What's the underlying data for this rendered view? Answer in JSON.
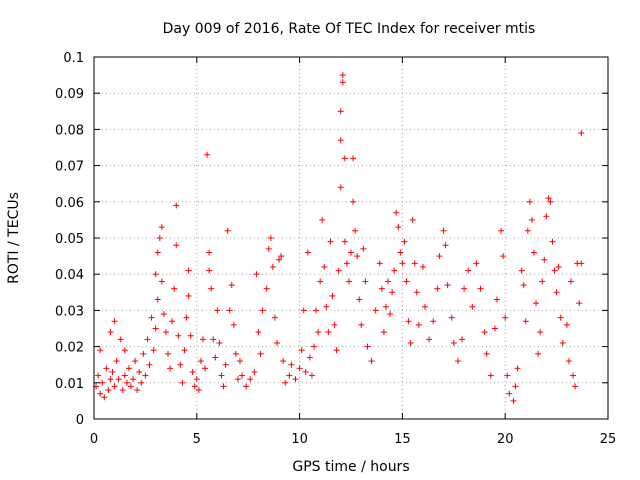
{
  "chart_data": {
    "type": "scatter",
    "title": "Day 009 of 2016, Rate Of TEC Index for receiver mtis",
    "xlabel": "GPS time / hours",
    "ylabel": "ROTI / TECUs",
    "xlim": [
      0,
      25
    ],
    "ylim": [
      0,
      0.1
    ],
    "xticks": [
      0,
      5,
      10,
      15,
      20,
      25
    ],
    "xtick_labels": [
      "0",
      "5",
      "10",
      "15",
      "20",
      "25"
    ],
    "yticks": [
      0,
      0.01,
      0.02,
      0.03,
      0.04,
      0.05,
      0.06,
      0.07,
      0.08,
      0.09,
      0.1
    ],
    "ytick_labels": [
      "0",
      "0.01",
      "0.02",
      "0.03",
      "0.04",
      "0.05",
      "0.06",
      "0.07",
      "0.08",
      "0.09",
      "0.1"
    ],
    "grid": true,
    "marker": "+",
    "color": "#ff0000",
    "series": [
      {
        "name": "ROTI",
        "points": [
          [
            0.1,
            0.009
          ],
          [
            0.2,
            0.012
          ],
          [
            0.3,
            0.007
          ],
          [
            0.3,
            0.019
          ],
          [
            0.4,
            0.01
          ],
          [
            0.5,
            0.006
          ],
          [
            0.6,
            0.014
          ],
          [
            0.7,
            0.008
          ],
          [
            0.8,
            0.011
          ],
          [
            0.8,
            0.024
          ],
          [
            0.9,
            0.013
          ],
          [
            1.0,
            0.009
          ],
          [
            1.0,
            0.027
          ],
          [
            1.1,
            0.016
          ],
          [
            1.2,
            0.011
          ],
          [
            1.3,
            0.022
          ],
          [
            1.4,
            0.008
          ],
          [
            1.5,
            0.012
          ],
          [
            1.5,
            0.019
          ],
          [
            1.6,
            0.01
          ],
          [
            1.7,
            0.014
          ],
          [
            1.8,
            0.009
          ],
          [
            1.9,
            0.011
          ],
          [
            2.0,
            0.016
          ],
          [
            2.1,
            0.008
          ],
          [
            2.2,
            0.013
          ],
          [
            2.3,
            0.01
          ],
          [
            2.4,
            0.018
          ],
          [
            2.5,
            0.012
          ],
          [
            2.6,
            0.022
          ],
          [
            2.7,
            0.015
          ],
          [
            2.8,
            0.028
          ],
          [
            2.9,
            0.019
          ],
          [
            3.0,
            0.025
          ],
          [
            3.0,
            0.04
          ],
          [
            3.1,
            0.033
          ],
          [
            3.1,
            0.046
          ],
          [
            3.2,
            0.05
          ],
          [
            3.3,
            0.053
          ],
          [
            3.3,
            0.038
          ],
          [
            3.4,
            0.029
          ],
          [
            3.5,
            0.024
          ],
          [
            3.6,
            0.018
          ],
          [
            3.7,
            0.014
          ],
          [
            3.8,
            0.027
          ],
          [
            3.9,
            0.036
          ],
          [
            4.0,
            0.048
          ],
          [
            4.0,
            0.059
          ],
          [
            4.1,
            0.023
          ],
          [
            4.2,
            0.015
          ],
          [
            4.3,
            0.01
          ],
          [
            4.4,
            0.019
          ],
          [
            4.5,
            0.028
          ],
          [
            4.6,
            0.041
          ],
          [
            4.6,
            0.034
          ],
          [
            4.7,
            0.023
          ],
          [
            4.8,
            0.013
          ],
          [
            4.9,
            0.009
          ],
          [
            5.0,
            0.011
          ],
          [
            5.1,
            0.008
          ],
          [
            5.2,
            0.016
          ],
          [
            5.3,
            0.022
          ],
          [
            5.4,
            0.014
          ],
          [
            5.5,
            0.073
          ],
          [
            5.6,
            0.046
          ],
          [
            5.6,
            0.041
          ],
          [
            5.7,
            0.036
          ],
          [
            5.8,
            0.022
          ],
          [
            5.9,
            0.017
          ],
          [
            6.0,
            0.03
          ],
          [
            6.1,
            0.021
          ],
          [
            6.2,
            0.012
          ],
          [
            6.3,
            0.009
          ],
          [
            6.4,
            0.015
          ],
          [
            6.5,
            0.052
          ],
          [
            6.6,
            0.03
          ],
          [
            6.7,
            0.037
          ],
          [
            6.8,
            0.026
          ],
          [
            6.9,
            0.018
          ],
          [
            7.0,
            0.011
          ],
          [
            7.1,
            0.016
          ],
          [
            7.2,
            0.012
          ],
          [
            7.4,
            0.009
          ],
          [
            7.6,
            0.011
          ],
          [
            7.8,
            0.013
          ],
          [
            7.9,
            0.04
          ],
          [
            8.0,
            0.024
          ],
          [
            8.1,
            0.018
          ],
          [
            8.2,
            0.03
          ],
          [
            8.4,
            0.036
          ],
          [
            8.5,
            0.047
          ],
          [
            8.6,
            0.05
          ],
          [
            8.7,
            0.042
          ],
          [
            8.8,
            0.028
          ],
          [
            8.9,
            0.021
          ],
          [
            9.0,
            0.044
          ],
          [
            9.1,
            0.045
          ],
          [
            9.2,
            0.016
          ],
          [
            9.3,
            0.01
          ],
          [
            9.5,
            0.012
          ],
          [
            9.6,
            0.015
          ],
          [
            9.8,
            0.011
          ],
          [
            10.0,
            0.014
          ],
          [
            10.1,
            0.019
          ],
          [
            10.2,
            0.03
          ],
          [
            10.3,
            0.013
          ],
          [
            10.4,
            0.046
          ],
          [
            10.5,
            0.017
          ],
          [
            10.6,
            0.012
          ],
          [
            10.7,
            0.02
          ],
          [
            10.8,
            0.03
          ],
          [
            10.9,
            0.024
          ],
          [
            11.0,
            0.038
          ],
          [
            11.1,
            0.055
          ],
          [
            11.2,
            0.042
          ],
          [
            11.3,
            0.031
          ],
          [
            11.4,
            0.024
          ],
          [
            11.5,
            0.049
          ],
          [
            11.6,
            0.034
          ],
          [
            11.7,
            0.026
          ],
          [
            11.8,
            0.019
          ],
          [
            11.9,
            0.041
          ],
          [
            12.0,
            0.064
          ],
          [
            12.0,
            0.077
          ],
          [
            12.0,
            0.085
          ],
          [
            12.1,
            0.093
          ],
          [
            12.1,
            0.095
          ],
          [
            12.2,
            0.072
          ],
          [
            12.2,
            0.049
          ],
          [
            12.3,
            0.043
          ],
          [
            12.4,
            0.038
          ],
          [
            12.5,
            0.046
          ],
          [
            12.6,
            0.072
          ],
          [
            12.6,
            0.06
          ],
          [
            12.7,
            0.052
          ],
          [
            12.8,
            0.045
          ],
          [
            12.9,
            0.033
          ],
          [
            13.0,
            0.026
          ],
          [
            13.1,
            0.047
          ],
          [
            13.2,
            0.038
          ],
          [
            13.3,
            0.02
          ],
          [
            13.5,
            0.016
          ],
          [
            13.7,
            0.03
          ],
          [
            13.9,
            0.043
          ],
          [
            14.0,
            0.036
          ],
          [
            14.1,
            0.024
          ],
          [
            14.2,
            0.031
          ],
          [
            14.3,
            0.038
          ],
          [
            14.4,
            0.029
          ],
          [
            14.5,
            0.035
          ],
          [
            14.6,
            0.041
          ],
          [
            14.7,
            0.057
          ],
          [
            14.8,
            0.053
          ],
          [
            14.9,
            0.046
          ],
          [
            15.0,
            0.043
          ],
          [
            15.1,
            0.049
          ],
          [
            15.2,
            0.038
          ],
          [
            15.3,
            0.027
          ],
          [
            15.4,
            0.021
          ],
          [
            15.5,
            0.055
          ],
          [
            15.6,
            0.043
          ],
          [
            15.7,
            0.035
          ],
          [
            15.8,
            0.026
          ],
          [
            16.0,
            0.042
          ],
          [
            16.1,
            0.031
          ],
          [
            16.3,
            0.022
          ],
          [
            16.5,
            0.027
          ],
          [
            16.7,
            0.036
          ],
          [
            16.8,
            0.045
          ],
          [
            17.0,
            0.052
          ],
          [
            17.1,
            0.048
          ],
          [
            17.2,
            0.037
          ],
          [
            17.4,
            0.028
          ],
          [
            17.5,
            0.021
          ],
          [
            17.7,
            0.016
          ],
          [
            17.9,
            0.022
          ],
          [
            18.0,
            0.036
          ],
          [
            18.2,
            0.041
          ],
          [
            18.4,
            0.031
          ],
          [
            18.6,
            0.043
          ],
          [
            18.8,
            0.036
          ],
          [
            19.0,
            0.024
          ],
          [
            19.1,
            0.018
          ],
          [
            19.3,
            0.012
          ],
          [
            19.5,
            0.025
          ],
          [
            19.6,
            0.033
          ],
          [
            19.8,
            0.052
          ],
          [
            19.9,
            0.045
          ],
          [
            20.0,
            0.028
          ],
          [
            20.1,
            0.012
          ],
          [
            20.2,
            0.007
          ],
          [
            20.4,
            0.005
          ],
          [
            20.5,
            0.009
          ],
          [
            20.6,
            0.014
          ],
          [
            20.8,
            0.041
          ],
          [
            20.9,
            0.037
          ],
          [
            21.0,
            0.027
          ],
          [
            21.1,
            0.052
          ],
          [
            21.2,
            0.06
          ],
          [
            21.3,
            0.055
          ],
          [
            21.4,
            0.046
          ],
          [
            21.5,
            0.032
          ],
          [
            21.6,
            0.018
          ],
          [
            21.7,
            0.024
          ],
          [
            21.8,
            0.038
          ],
          [
            21.9,
            0.044
          ],
          [
            22.0,
            0.056
          ],
          [
            22.1,
            0.061
          ],
          [
            22.2,
            0.06
          ],
          [
            22.3,
            0.049
          ],
          [
            22.4,
            0.041
          ],
          [
            22.5,
            0.035
          ],
          [
            22.6,
            0.042
          ],
          [
            22.7,
            0.028
          ],
          [
            22.8,
            0.021
          ],
          [
            23.0,
            0.026
          ],
          [
            23.1,
            0.016
          ],
          [
            23.2,
            0.038
          ],
          [
            23.3,
            0.012
          ],
          [
            23.4,
            0.009
          ],
          [
            23.5,
            0.043
          ],
          [
            23.6,
            0.032
          ],
          [
            23.7,
            0.079
          ],
          [
            23.7,
            0.043
          ]
        ]
      }
    ]
  }
}
